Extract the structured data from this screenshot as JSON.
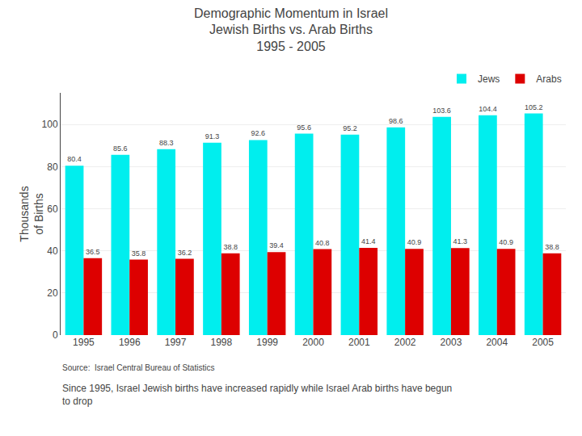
{
  "chart_data": {
    "type": "bar",
    "title": "Demographic Momentum in Israel\nJewish Births vs. Arab Births\n1995 - 2005",
    "ylabel": "Thousands\nof Births",
    "categories": [
      "1995",
      "1996",
      "1997",
      "1998",
      "1999",
      "2000",
      "2001",
      "2002",
      "2003",
      "2004",
      "2005"
    ],
    "series": [
      {
        "name": "Jews",
        "color": "#00EEEE",
        "values": [
          80.4,
          85.6,
          88.3,
          91.3,
          92.6,
          95.6,
          95.2,
          98.6,
          103.6,
          104.4,
          105.2
        ]
      },
      {
        "name": "Arabs",
        "color": "#DD0000",
        "values": [
          36.5,
          35.8,
          36.2,
          38.8,
          39.4,
          40.8,
          41.4,
          40.9,
          41.3,
          40.9,
          38.8
        ]
      }
    ],
    "ylim": [
      0,
      115
    ],
    "yticks": [
      0,
      20,
      40,
      60,
      80,
      100
    ],
    "grid": true,
    "legend": "upper right",
    "data_labels": true,
    "annotations": [
      "Source:  Israel Central Bureau of Statistics",
      "Since 1995, Israel Jewish births have increased rapidly while Israel Arab births have begun\nto drop"
    ]
  }
}
